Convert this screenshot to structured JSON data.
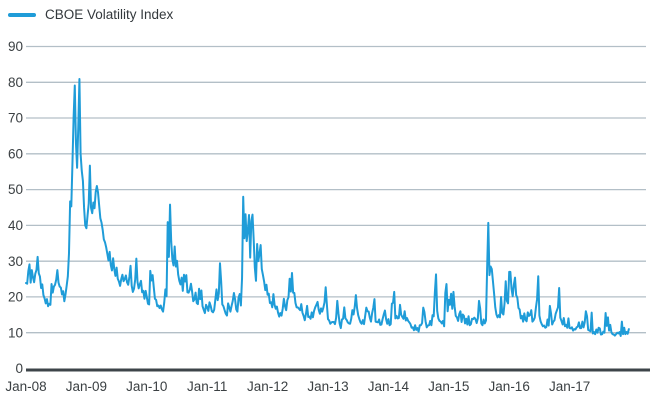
{
  "chart_data": {
    "type": "line",
    "title": "",
    "legend_entries": [
      "CBOE Volatility Index"
    ],
    "legend_position": "top-left",
    "grid": "horizontal",
    "xlabel": "",
    "ylabel": "",
    "ylim": [
      0,
      90
    ],
    "y_ticks": [
      0,
      10,
      20,
      30,
      40,
      50,
      60,
      70,
      80,
      90
    ],
    "x_tick_labels": [
      "Jan-08",
      "Jan-09",
      "Jan-10",
      "Jan-11",
      "Jan-12",
      "Jan-13",
      "Jan-14",
      "Jan-15",
      "Jan-16",
      "Jan-17"
    ],
    "x_start": "2008-01",
    "x_end": "2017-12",
    "x_interval": "weekly",
    "colors": {
      "line": "#1f9cd8",
      "grid": "#b3bfc7",
      "axis": "#3d4449",
      "text": "#3b4043"
    },
    "series": [
      {
        "name": "CBOE Volatility Index",
        "color": "#1f9cd8",
        "values": [
          23.9,
          23.7,
          27.2,
          29.1,
          24.0,
          27.5,
          25.5,
          24.1,
          26.5,
          27.5,
          31.2,
          26.6,
          25.7,
          22.5,
          23.5,
          20.5,
          19.6,
          18.2,
          19.4,
          17.4,
          18.1,
          17.8,
          23.6,
          21.2,
          22.9,
          23.4,
          24.8,
          27.5,
          24.0,
          22.9,
          22.6,
          20.7,
          21.6,
          18.8,
          20.7,
          23.1,
          25.7,
          32.1,
          46.7,
          45.3,
          57.5,
          70.3,
          79.1,
          63.0,
          56.1,
          67.5,
          80.9,
          60.0,
          55.3,
          52.4,
          44.9,
          40.0,
          39.2,
          42.8,
          46.1,
          56.7,
          44.9,
          43.4,
          46.4,
          44.8,
          49.3,
          51.0,
          49.2,
          45.5,
          42.0,
          40.8,
          38.8,
          36.1,
          35.3,
          33.9,
          32.1,
          30.2,
          32.6,
          28.9,
          27.4,
          30.8,
          27.8,
          25.9,
          28.2,
          25.1,
          24.3,
          23.1,
          25.0,
          26.2,
          24.4,
          25.0,
          26.0,
          24.1,
          23.4,
          25.6,
          28.7,
          23.1,
          21.4,
          22.3,
          24.8,
          30.7,
          24.2,
          22.4,
          23.5,
          24.5,
          21.3,
          21.7,
          19.5,
          21.7,
          20.0,
          18.1,
          17.9,
          27.3,
          24.6,
          26.1,
          22.7,
          19.5,
          19.2,
          17.4,
          17.6,
          16.9,
          17.6,
          16.5,
          15.9,
          18.4,
          22.1,
          20.2,
          40.9,
          31.2,
          45.8,
          35.6,
          30.5,
          28.8,
          34.1,
          28.5,
          30.1,
          26.3,
          24.5,
          23.5,
          25.4,
          21.7,
          26.2,
          24.3,
          26.1,
          21.3,
          21.2,
          22.0,
          23.7,
          21.5,
          18.8,
          19.3,
          21.2,
          18.3,
          18.0,
          22.3,
          19.4,
          21.8,
          17.4,
          16.4,
          15.5,
          17.8,
          17.1,
          16.1,
          18.5,
          17.5,
          16.0,
          15.7,
          16.4,
          19.2,
          22.1,
          19.1,
          21.0,
          29.4,
          24.4,
          17.9,
          17.4,
          16.3,
          15.3,
          14.8,
          18.2,
          17.1,
          15.9,
          17.5,
          18.9,
          21.1,
          19.3,
          16.5,
          15.9,
          19.8,
          20.8,
          17.6,
          25.3,
          48.0,
          36.4,
          43.1,
          35.6,
          38.5,
          42.9,
          31.0,
          41.2,
          43.0,
          36.2,
          28.2,
          24.5,
          34.8,
          30.0,
          32.0,
          34.5,
          27.8,
          26.1,
          24.3,
          21.9,
          23.4,
          20.6,
          20.9,
          18.3,
          18.5,
          17.1,
          20.8,
          17.8,
          16.7,
          17.3,
          15.6,
          14.5,
          15.5,
          14.8,
          16.7,
          19.5,
          17.4,
          16.3,
          19.1,
          19.9,
          25.1,
          21.5,
          26.7,
          21.2,
          21.1,
          18.3,
          17.1,
          17.1,
          16.7,
          16.3,
          18.0,
          15.6,
          14.7,
          13.5,
          15.2,
          17.5,
          14.4,
          14.5,
          13.9,
          15.7,
          14.3,
          16.1,
          17.1,
          17.8,
          18.6,
          16.4,
          15.3,
          16.8,
          15.9,
          17.0,
          18.5,
          22.7,
          18.0,
          13.8,
          13.4,
          12.5,
          12.9,
          13.0,
          13.0,
          12.4,
          14.2,
          18.9,
          15.4,
          12.6,
          11.3,
          13.7,
          13.9,
          17.1,
          14.0,
          13.6,
          12.9,
          12.6,
          12.5,
          13.9,
          16.3,
          15.1,
          17.2,
          20.5,
          16.9,
          14.9,
          13.8,
          12.9,
          12.5,
          13.5,
          12.4,
          14.7,
          17.0,
          16.0,
          15.9,
          14.2,
          13.1,
          15.5,
          17.0,
          19.4,
          13.1,
          13.0,
          12.9,
          13.7,
          12.2,
          12.3,
          13.8,
          15.1,
          16.2,
          13.8,
          12.5,
          13.8,
          12.1,
          12.4,
          18.1,
          18.4,
          21.4,
          14.0,
          14.7,
          14.0,
          14.1,
          17.8,
          15.0,
          14.4,
          13.9,
          16.0,
          13.4,
          14.1,
          13.3,
          12.9,
          12.4,
          11.4,
          11.5,
          10.7,
          12.1,
          10.8,
          11.3,
          10.3,
          12.1,
          12.1,
          12.7,
          17.0,
          15.8,
          13.2,
          11.5,
          12.0,
          12.1,
          13.3,
          12.1,
          14.9,
          14.6,
          21.2,
          26.3,
          16.1,
          14.0,
          13.3,
          13.1,
          12.6,
          13.3,
          11.8,
          21.1,
          23.6,
          16.0,
          19.2,
          17.8,
          20.9,
          16.7,
          21.4,
          17.3,
          14.7,
          14.3,
          13.3,
          15.2,
          16.0,
          13.0,
          15.1,
          14.7,
          12.6,
          13.9,
          12.3,
          14.6,
          12.1,
          12.4,
          13.9,
          13.8,
          14.2,
          13.8,
          12.7,
          14.0,
          18.9,
          16.8,
          12.6,
          12.1,
          13.7,
          12.6,
          13.4,
          28.0,
          40.7,
          26.1,
          28.5,
          27.8,
          24.4,
          20.9,
          17.1,
          15.1,
          14.3,
          14.9,
          14.3,
          20.0,
          15.5,
          15.1,
          18.2,
          24.4,
          18.9,
          18.2,
          27.0,
          27.0,
          22.3,
          20.2,
          23.4,
          25.4,
          20.5,
          19.8,
          16.9,
          16.5,
          14.0,
          14.7,
          13.1,
          15.4,
          13.6,
          13.2,
          15.7,
          14.7,
          15.0,
          16.3,
          13.1,
          13.5,
          14.2,
          17.0,
          19.4,
          25.8,
          14.8,
          13.2,
          12.4,
          11.8,
          12.0,
          11.4,
          11.6,
          13.7,
          12.0,
          17.5,
          15.4,
          12.3,
          13.1,
          13.5,
          15.3,
          16.2,
          17.1,
          22.5,
          14.2,
          13.3,
          12.3,
          14.1,
          11.8,
          12.2,
          11.4,
          14.0,
          11.3,
          11.2,
          11.5,
          10.6,
          11.0,
          10.9,
          11.5,
          11.7,
          12.9,
          11.3,
          11.3,
          13.1,
          11.5,
          12.9,
          16.0,
          14.6,
          10.8,
          10.6,
          10.4,
          15.6,
          9.8,
          10.2,
          9.6,
          10.9,
          10.0,
          11.4,
          11.2,
          9.5,
          9.6,
          10.3,
          10.0,
          15.5,
          11.9,
          14.3,
          10.6,
          12.2,
          10.1,
          9.6,
          9.5,
          9.2,
          9.6,
          10.0,
          9.8,
          10.2,
          9.1,
          13.1,
          9.6,
          11.4,
          9.6,
          10.2,
          9.7,
          11.0
        ]
      }
    ]
  }
}
